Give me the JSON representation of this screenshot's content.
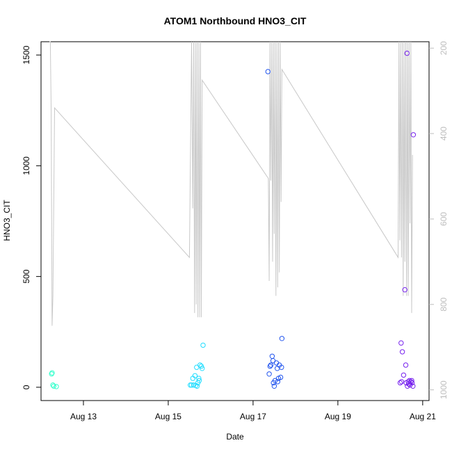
{
  "chart_data": {
    "type": "scatter",
    "title": "ATOM1 Northbound HNO3_CIT",
    "xlabel": "Date",
    "ylabel": "HNO3_CIT",
    "x_unit": "days (August)",
    "xlim": [
      12.0,
      21.15
    ],
    "ylim": [
      -60,
      1560
    ],
    "x_ticks": [
      {
        "value": 13,
        "label": "Aug 13"
      },
      {
        "value": 15,
        "label": "Aug 15"
      },
      {
        "value": 17,
        "label": "Aug 17"
      },
      {
        "value": 19,
        "label": "Aug 19"
      },
      {
        "value": 21,
        "label": "Aug 21"
      }
    ],
    "y_ticks": [
      {
        "value": 0,
        "label": "0"
      },
      {
        "value": 500,
        "label": "500"
      },
      {
        "value": 1000,
        "label": "1000"
      },
      {
        "value": 1500,
        "label": "1500"
      }
    ],
    "y2_ticks": [
      {
        "value": 200,
        "label": "200"
      },
      {
        "value": 400,
        "label": "400"
      },
      {
        "value": 600,
        "label": "600"
      },
      {
        "value": 800,
        "label": "800"
      },
      {
        "value": 1000,
        "label": "1000"
      }
    ],
    "y2lim": [
      185,
      1025
    ],
    "y2_reversed": true,
    "grid": false,
    "series": [
      {
        "kind": "points",
        "marker": "open-circle",
        "points": [
          {
            "x": 12.25,
            "y": 60,
            "color": "#33ffcc"
          },
          {
            "x": 12.26,
            "y": 65,
            "color": "#33ffcc"
          },
          {
            "x": 12.28,
            "y": 10,
            "color": "#33ffcc"
          },
          {
            "x": 12.3,
            "y": 5,
            "color": "#33ffcc"
          },
          {
            "x": 12.36,
            "y": 3,
            "color": "#33ffcc"
          },
          {
            "x": 15.52,
            "y": 10,
            "color": "#22ddff"
          },
          {
            "x": 15.55,
            "y": 10,
            "color": "#22ddff"
          },
          {
            "x": 15.58,
            "y": 40,
            "color": "#22ddff"
          },
          {
            "x": 15.6,
            "y": 10,
            "color": "#22ddff"
          },
          {
            "x": 15.63,
            "y": 52,
            "color": "#22ddff"
          },
          {
            "x": 15.65,
            "y": 8,
            "color": "#22ddff"
          },
          {
            "x": 15.67,
            "y": 90,
            "color": "#22ddff"
          },
          {
            "x": 15.68,
            "y": 5,
            "color": "#22ddff"
          },
          {
            "x": 15.7,
            "y": 20,
            "color": "#22ddff"
          },
          {
            "x": 15.72,
            "y": 40,
            "color": "#22ddff"
          },
          {
            "x": 15.73,
            "y": 30,
            "color": "#22ddff"
          },
          {
            "x": 15.75,
            "y": 100,
            "color": "#22ddff"
          },
          {
            "x": 15.78,
            "y": 95,
            "color": "#22ddff"
          },
          {
            "x": 15.8,
            "y": 85,
            "color": "#22ddff"
          },
          {
            "x": 15.82,
            "y": 190,
            "color": "#22ddff"
          },
          {
            "x": 17.35,
            "y": 1425,
            "color": "#2255ee"
          },
          {
            "x": 17.38,
            "y": 60,
            "color": "#2255ee"
          },
          {
            "x": 17.4,
            "y": 95,
            "color": "#2255ee"
          },
          {
            "x": 17.42,
            "y": 100,
            "color": "#2255ee"
          },
          {
            "x": 17.45,
            "y": 140,
            "color": "#2255ee"
          },
          {
            "x": 17.47,
            "y": 120,
            "color": "#2255ee"
          },
          {
            "x": 17.48,
            "y": 20,
            "color": "#2255ee"
          },
          {
            "x": 17.5,
            "y": 5,
            "color": "#2255ee"
          },
          {
            "x": 17.52,
            "y": 30,
            "color": "#2255ee"
          },
          {
            "x": 17.55,
            "y": 110,
            "color": "#2255ee"
          },
          {
            "x": 17.57,
            "y": 85,
            "color": "#2255ee"
          },
          {
            "x": 17.58,
            "y": 25,
            "color": "#2255ee"
          },
          {
            "x": 17.6,
            "y": 40,
            "color": "#2255ee"
          },
          {
            "x": 17.62,
            "y": 100,
            "color": "#2255ee"
          },
          {
            "x": 17.65,
            "y": 45,
            "color": "#2255ee"
          },
          {
            "x": 17.67,
            "y": 90,
            "color": "#2255ee"
          },
          {
            "x": 17.68,
            "y": 220,
            "color": "#2255ee"
          },
          {
            "x": 20.47,
            "y": 20,
            "color": "#7722ee"
          },
          {
            "x": 20.49,
            "y": 200,
            "color": "#7722ee"
          },
          {
            "x": 20.5,
            "y": 25,
            "color": "#7722ee"
          },
          {
            "x": 20.52,
            "y": 160,
            "color": "#7722ee"
          },
          {
            "x": 20.55,
            "y": 55,
            "color": "#7722ee"
          },
          {
            "x": 20.58,
            "y": 440,
            "color": "#7722ee"
          },
          {
            "x": 20.6,
            "y": 100,
            "color": "#7722ee"
          },
          {
            "x": 20.61,
            "y": 20,
            "color": "#7722ee"
          },
          {
            "x": 20.63,
            "y": 1508,
            "color": "#7722ee"
          },
          {
            "x": 20.64,
            "y": 5,
            "color": "#7722ee"
          },
          {
            "x": 20.66,
            "y": 25,
            "color": "#7722ee"
          },
          {
            "x": 20.67,
            "y": 15,
            "color": "#7722ee"
          },
          {
            "x": 20.69,
            "y": 30,
            "color": "#7722ee"
          },
          {
            "x": 20.7,
            "y": 10,
            "color": "#7722ee"
          },
          {
            "x": 20.72,
            "y": 25,
            "color": "#7722ee"
          },
          {
            "x": 20.74,
            "y": 30,
            "color": "#7722ee"
          },
          {
            "x": 20.75,
            "y": 20,
            "color": "#7722ee"
          },
          {
            "x": 20.77,
            "y": 5,
            "color": "#7722ee"
          },
          {
            "x": 20.78,
            "y": 1140,
            "color": "#7722ee"
          }
        ]
      },
      {
        "kind": "line",
        "axis": "y2",
        "color": "#c8c8c8",
        "points": [
          [
            12.2,
            185
          ],
          [
            12.22,
            185
          ],
          [
            12.24,
            350
          ],
          [
            12.26,
            850
          ],
          [
            12.28,
            780
          ],
          [
            12.32,
            340
          ],
          [
            15.5,
            690
          ],
          [
            15.55,
            185
          ],
          [
            15.58,
            575
          ],
          [
            15.6,
            185
          ],
          [
            15.62,
            820
          ],
          [
            15.64,
            185
          ],
          [
            15.66,
            800
          ],
          [
            15.68,
            185
          ],
          [
            15.7,
            830
          ],
          [
            15.72,
            185
          ],
          [
            15.74,
            830
          ],
          [
            15.76,
            185
          ],
          [
            15.78,
            830
          ],
          [
            15.8,
            275
          ],
          [
            17.36,
            505
          ],
          [
            17.38,
            745
          ],
          [
            17.4,
            185
          ],
          [
            17.42,
            510
          ],
          [
            17.44,
            185
          ],
          [
            17.46,
            700
          ],
          [
            17.48,
            185
          ],
          [
            17.5,
            635
          ],
          [
            17.52,
            185
          ],
          [
            17.54,
            780
          ],
          [
            17.56,
            185
          ],
          [
            17.58,
            760
          ],
          [
            17.6,
            185
          ],
          [
            17.62,
            725
          ],
          [
            17.64,
            185
          ],
          [
            17.66,
            560
          ],
          [
            17.68,
            250
          ],
          [
            20.42,
            690
          ],
          [
            20.44,
            185
          ],
          [
            20.46,
            650
          ],
          [
            20.48,
            185
          ],
          [
            20.5,
            690
          ],
          [
            20.52,
            185
          ],
          [
            20.54,
            780
          ],
          [
            20.56,
            185
          ],
          [
            20.58,
            700
          ],
          [
            20.6,
            185
          ],
          [
            20.62,
            780
          ],
          [
            20.64,
            185
          ],
          [
            20.66,
            780
          ],
          [
            20.68,
            185
          ],
          [
            20.7,
            610
          ],
          [
            20.72,
            185
          ],
          [
            20.74,
            820
          ],
          [
            20.76,
            450
          ]
        ]
      }
    ]
  }
}
